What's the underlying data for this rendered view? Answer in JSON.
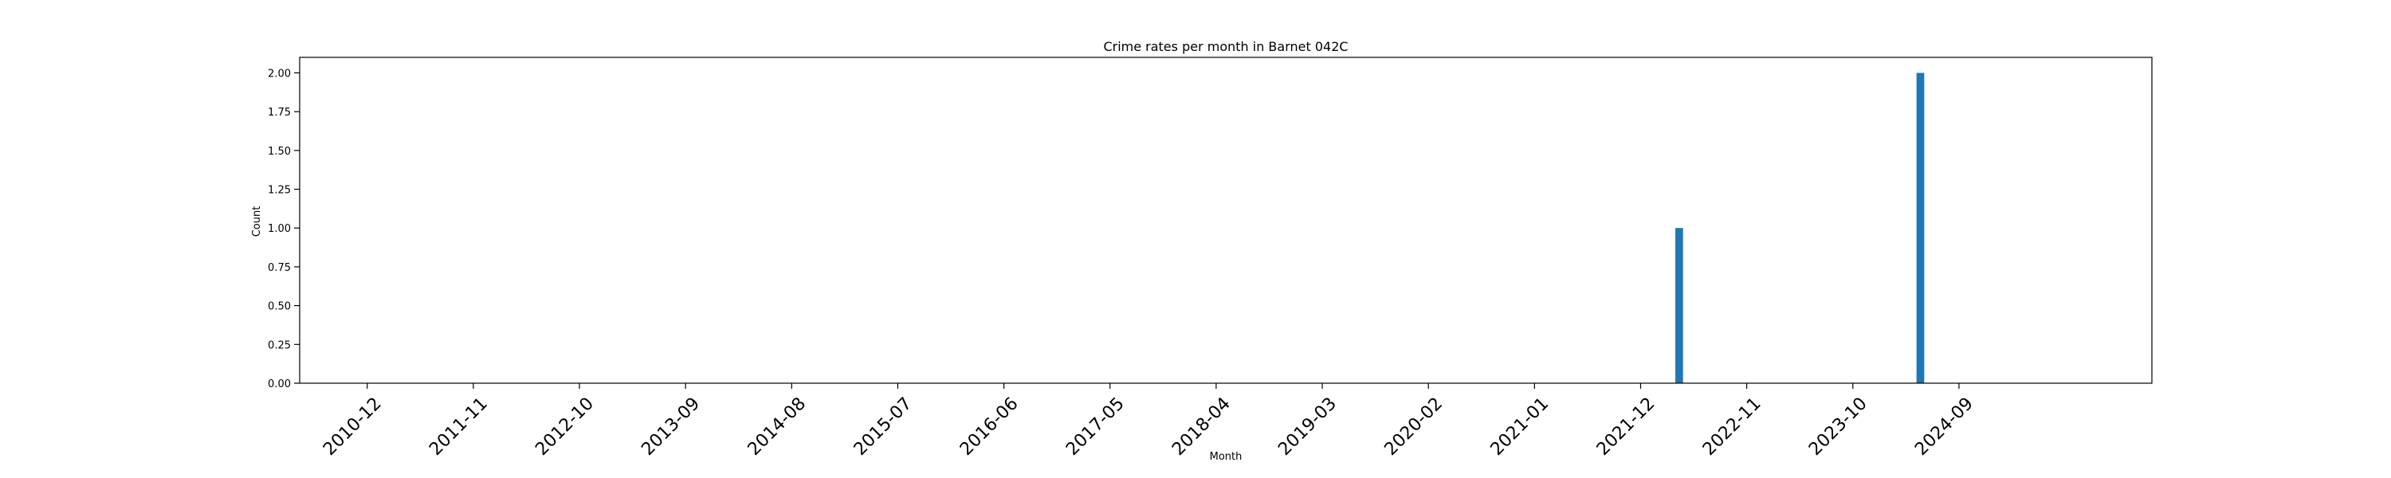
{
  "chart_data": {
    "type": "bar",
    "title": "Crime rates per month in Barnet 042C",
    "xlabel": "Month",
    "ylabel": "Count",
    "ylim": [
      0,
      2.1
    ],
    "yticks": [
      "0.00",
      "0.25",
      "0.50",
      "0.75",
      "1.00",
      "1.25",
      "1.50",
      "1.75",
      "2.00"
    ],
    "xticks": [
      "2010-12",
      "2011-11",
      "2012-10",
      "2013-09",
      "2014-08",
      "2015-07",
      "2016-06",
      "2017-05",
      "2018-04",
      "2019-03",
      "2020-02",
      "2021-01",
      "2021-12",
      "2022-11",
      "2023-10",
      "2024-09"
    ],
    "x_start": "2010-05",
    "x_end": "2026-05",
    "categories": [
      "2022-04",
      "2024-05"
    ],
    "values": [
      1,
      2
    ],
    "bar_color": "#1f77b4",
    "grid": false
  }
}
